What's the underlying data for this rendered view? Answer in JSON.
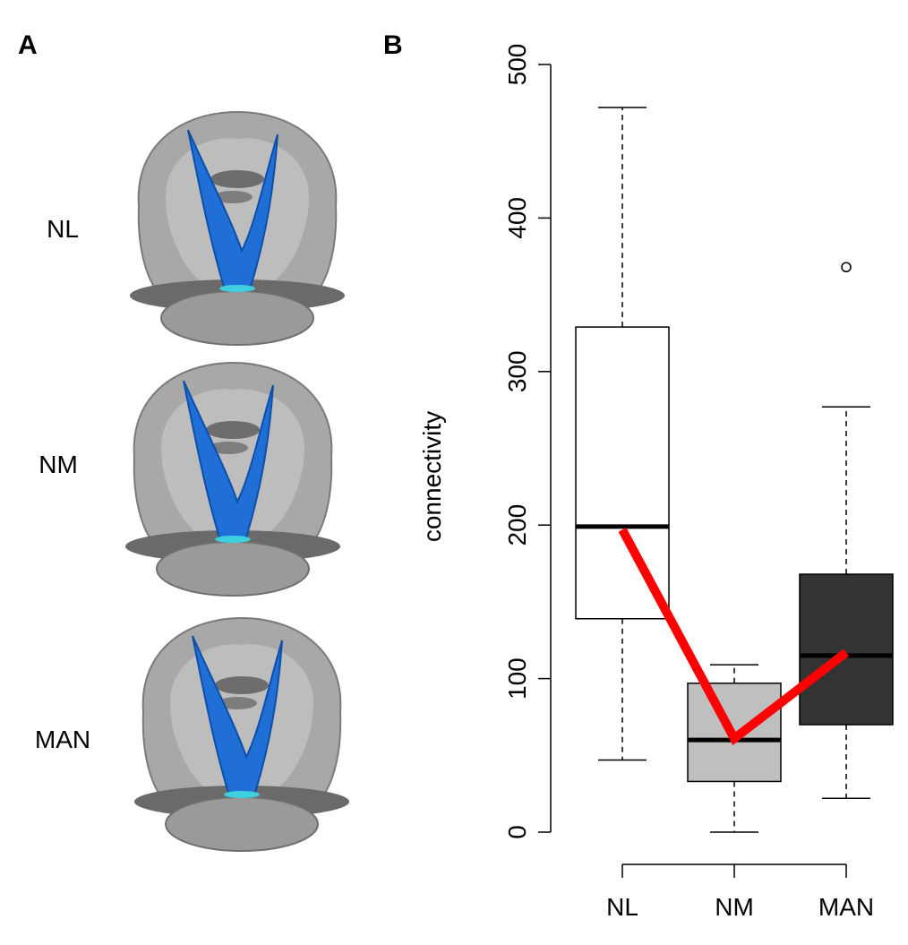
{
  "panel_a": {
    "label": "A",
    "rows": [
      "NL",
      "NM",
      "MAN"
    ]
  },
  "chart_data": {
    "type": "box",
    "panel_label": "B",
    "y_label": "connectivity",
    "categories": [
      "NL",
      "NM",
      "MAN"
    ],
    "boxes": [
      {
        "whisker_low": 47,
        "q1": 139,
        "median": 199,
        "q3": 329,
        "whisker_high": 472,
        "color": "#ffffff"
      },
      {
        "whisker_low": 0,
        "q1": 33,
        "median": 60,
        "q3": 97,
        "whisker_high": 109,
        "color": "#bfbfbf"
      },
      {
        "whisker_low": 22,
        "q1": 70,
        "median": 115,
        "q3": 168,
        "whisker_high": 277,
        "outliers": [
          368
        ],
        "color": "#333333"
      }
    ],
    "line": {
      "color": "#ff0000",
      "values": [
        197,
        61,
        117
      ]
    },
    "ylim": [
      0,
      500
    ],
    "yticks": [
      0,
      100,
      200,
      300,
      400,
      500
    ]
  }
}
